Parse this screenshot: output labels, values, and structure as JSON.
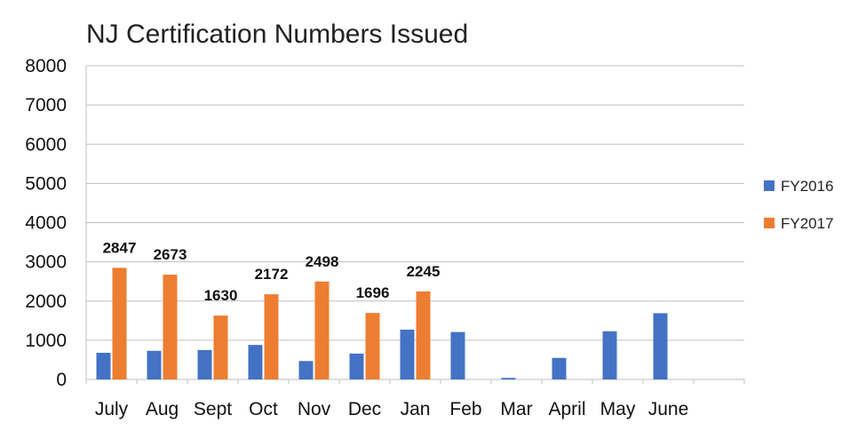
{
  "chart_data": {
    "type": "bar",
    "title": "NJ Certification Numbers Issued",
    "xlabel": "",
    "ylabel": "",
    "categories": [
      "July",
      "Aug",
      "Sept",
      "Oct",
      "Nov",
      "Dec",
      "Jan",
      "Feb",
      "Mar",
      "April",
      "May",
      "June",
      ""
    ],
    "series": [
      {
        "name": "FY2016",
        "color": "#4472c4",
        "values": [
          680,
          730,
          750,
          880,
          470,
          660,
          1270,
          1210,
          40,
          550,
          1230,
          1690,
          null
        ]
      },
      {
        "name": "FY2017",
        "color": "#ed7d31",
        "values": [
          2847,
          2673,
          1630,
          2172,
          2498,
          1696,
          2245,
          null,
          null,
          null,
          null,
          null,
          null
        ],
        "data_labels": [
          "2847",
          "2673",
          "1630",
          "2172",
          "2498",
          "1696",
          "2245"
        ]
      }
    ],
    "ylim": [
      0,
      8000
    ],
    "yticks": [
      0,
      1000,
      2000,
      3000,
      4000,
      5000,
      6000,
      7000,
      8000
    ],
    "grid": true,
    "legend_position": "right"
  }
}
